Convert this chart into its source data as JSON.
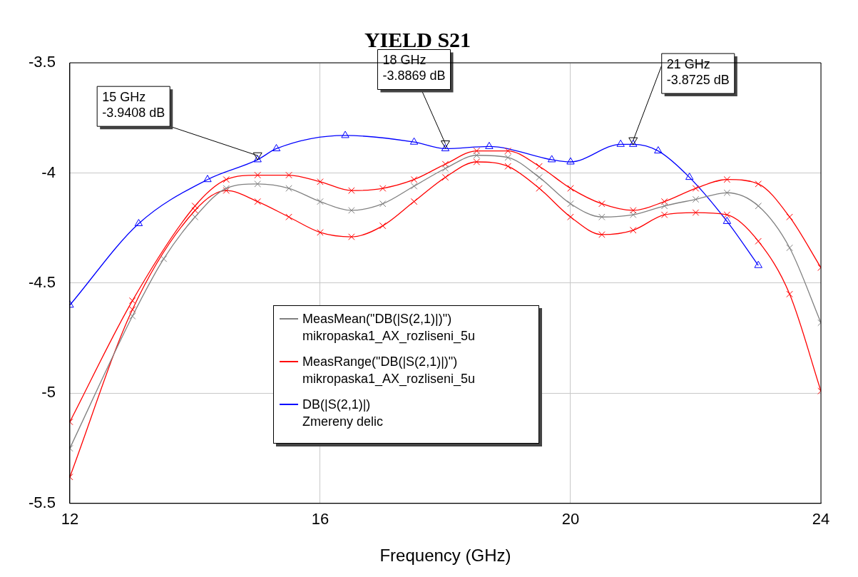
{
  "chart_data": {
    "type": "line",
    "title": "YIELD S21",
    "xlabel": "Frequency (GHz)",
    "xlim": [
      12,
      24
    ],
    "xticks": [
      12,
      16,
      20,
      24
    ],
    "ylim": [
      -5.5,
      -3.5
    ],
    "yticks": [
      -3.5,
      -4,
      -4.5,
      -5,
      -5.5
    ],
    "grid": true,
    "legend": "bottom",
    "series": [
      {
        "name": "MeasMean(\"DB(|S(2,1)|)\")\nmikropaska1_AX_rozliseni_5u",
        "color": "#808080",
        "marker": "cross",
        "x": [
          12,
          13,
          13.5,
          14,
          14.5,
          15,
          15.5,
          16,
          16.5,
          17,
          17.5,
          18,
          18.5,
          19,
          19.5,
          20,
          20.5,
          21,
          21.5,
          22,
          22.5,
          23,
          23.5,
          24
        ],
        "values": [
          -5.25,
          -4.65,
          -4.39,
          -4.2,
          -4.07,
          -4.05,
          -4.07,
          -4.13,
          -4.17,
          -4.14,
          -4.06,
          -3.98,
          -3.92,
          -3.93,
          -4.02,
          -4.14,
          -4.2,
          -4.19,
          -4.15,
          -4.12,
          -4.09,
          -4.15,
          -4.34,
          -4.68
        ]
      },
      {
        "name": "MeasRange(\"DB(|S(2,1)|)\")\nmikropaska1_AX_rozliseni_5u",
        "color": "#ff0000",
        "marker": "cross",
        "x": [
          12,
          13,
          14,
          14.5,
          15,
          15.5,
          16,
          16.5,
          17,
          17.5,
          18,
          18.5,
          19,
          19.5,
          20,
          20.5,
          21,
          21.5,
          22,
          22.5,
          23,
          23.5,
          24
        ],
        "values": [
          -5.13,
          -4.58,
          -4.15,
          -4.03,
          -4.01,
          -4.01,
          -4.04,
          -4.08,
          -4.07,
          -4.03,
          -3.96,
          -3.9,
          -3.9,
          -3.97,
          -4.07,
          -4.14,
          -4.17,
          -4.13,
          -4.07,
          -4.03,
          -4.05,
          -4.2,
          -4.43
        ]
      },
      {
        "color": "#ff0000",
        "marker": "cross",
        "x": [
          12,
          13,
          14,
          14.5,
          15,
          15.5,
          16,
          16.5,
          17,
          17.5,
          18,
          18.5,
          19,
          19.5,
          20,
          20.5,
          21,
          21.5,
          22,
          22.5,
          23,
          23.5,
          24
        ],
        "values": [
          -5.38,
          -4.62,
          -4.17,
          -4.08,
          -4.13,
          -4.2,
          -4.27,
          -4.29,
          -4.24,
          -4.13,
          -4.02,
          -3.95,
          -3.97,
          -4.07,
          -4.2,
          -4.28,
          -4.26,
          -4.19,
          -4.18,
          -4.19,
          -4.31,
          -4.55,
          -4.99
        ]
      },
      {
        "name": "DB(|S(2,1)|)\nZmereny delic",
        "color": "#0000ff",
        "marker": "triangle",
        "x": [
          12,
          13.1,
          14.2,
          15,
          15.3,
          16.4,
          17.5,
          18,
          18.7,
          19.7,
          20,
          20.8,
          21,
          21.4,
          21.9,
          22.5,
          23
        ],
        "values": [
          -4.6,
          -4.23,
          -4.03,
          -3.94,
          -3.89,
          -3.83,
          -3.86,
          -3.89,
          -3.88,
          -3.94,
          -3.95,
          -3.87,
          -3.87,
          -3.9,
          -4.02,
          -4.22,
          -4.42
        ]
      }
    ],
    "annotations": [
      {
        "text": "15 GHz\n-3.9408 dB",
        "x": 15,
        "y": -3.9408
      },
      {
        "text": "18 GHz\n-3.8869 dB",
        "x": 18,
        "y": -3.8869
      },
      {
        "text": "21 GHz\n-3.8725 dB",
        "x": 21,
        "y": -3.8725
      }
    ]
  }
}
